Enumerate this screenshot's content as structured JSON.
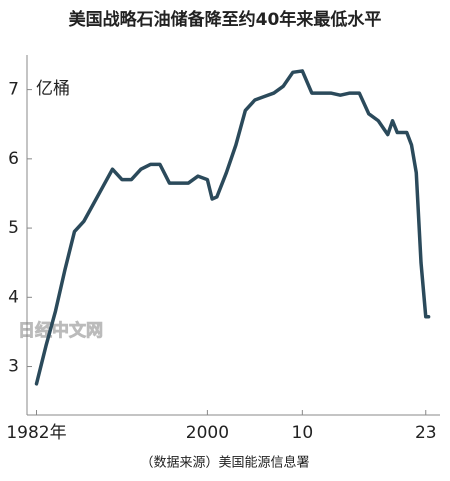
{
  "chart_data": {
    "type": "line",
    "title": "美国战略石油储备降至约40年来最低水平",
    "y_unit": "亿桶",
    "source": "（数据来源）美国能源信息署",
    "watermark": "日经中文网",
    "x": [
      1982,
      1983,
      1984,
      1985,
      1986,
      1987,
      1988,
      1989,
      1990,
      1991,
      1992,
      1993,
      1994,
      1995,
      1996,
      1997,
      1998,
      1999,
      2000,
      2000.5,
      2001,
      2002,
      2003,
      2004,
      2005,
      2006,
      2007,
      2008,
      2009,
      2010,
      2011,
      2012,
      2013,
      2014,
      2015,
      2016,
      2017,
      2018,
      2019,
      2019.5,
      2020,
      2021,
      2021.5,
      2022,
      2022.5,
      2023,
      2023.3
    ],
    "series": [
      {
        "color": "#2b4a5b",
        "values": [
          2.75,
          3.3,
          3.8,
          4.4,
          4.95,
          5.1,
          5.35,
          5.6,
          5.85,
          5.7,
          5.7,
          5.85,
          5.92,
          5.92,
          5.65,
          5.65,
          5.65,
          5.75,
          5.7,
          5.42,
          5.45,
          5.8,
          6.2,
          6.7,
          6.85,
          6.9,
          6.95,
          7.05,
          7.25,
          7.27,
          6.95,
          6.95,
          6.95,
          6.92,
          6.95,
          6.95,
          6.65,
          6.55,
          6.35,
          6.55,
          6.38,
          6.38,
          6.2,
          5.8,
          4.5,
          3.72,
          3.72
        ]
      }
    ],
    "xlim": [
      1981,
      2024.5
    ],
    "ylim": [
      2.3,
      7.5
    ],
    "xticks": [
      {
        "value": 1982,
        "label": "1982年"
      },
      2000,
      {
        "value": 2010,
        "label": "10"
      },
      {
        "value": 2023,
        "label": "23"
      }
    ],
    "yticks": [
      3,
      4,
      5,
      6,
      7
    ],
    "grid": false
  }
}
